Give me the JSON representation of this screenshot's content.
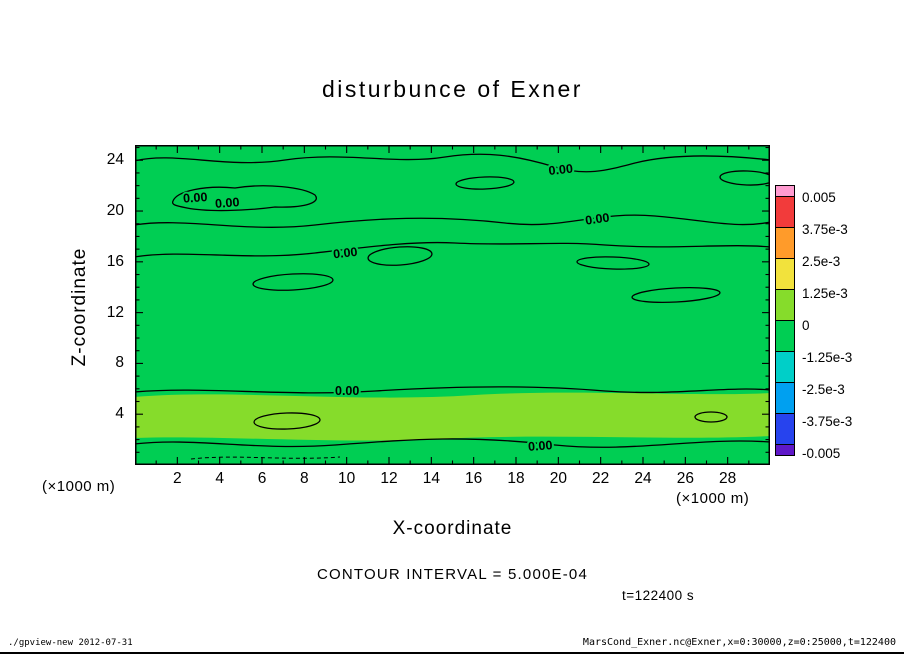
{
  "title": "disturbunce of Exner",
  "contour_label": "0.00",
  "axes": {
    "x": {
      "label": "X-coordinate",
      "unit": "(×1000 m)",
      "ticks": [
        "2",
        "4",
        "6",
        "8",
        "10",
        "12",
        "14",
        "16",
        "18",
        "20",
        "22",
        "24",
        "26",
        "28"
      ]
    },
    "y": {
      "label": "Z-coordinate",
      "unit": "(×1000 m)",
      "ticks": [
        "4",
        "8",
        "12",
        "16",
        "20",
        "24"
      ]
    }
  },
  "colorbar": {
    "labels": [
      "0.005",
      "3.75e-3",
      "2.5e-3",
      "1.25e-3",
      "0",
      "-1.25e-3",
      "-2.5e-3",
      "-3.75e-3",
      "-0.005"
    ],
    "colors": [
      "#FF9BD0",
      "#F23B3B",
      "#FF9B2A",
      "#F2E23C",
      "#86DC2B",
      "#00CE53",
      "#00CFC8",
      "#00A0F0",
      "#2743EE",
      "#5F18C8"
    ]
  },
  "colors": {
    "plot_bg": "#00CE53",
    "band": "#86DC2B",
    "frame": "#000000"
  },
  "annotations": {
    "contour_interval": "CONTOUR INTERVAL = 5.000E-04",
    "time": "t=122400 s"
  },
  "footer": {
    "left": "./gpview-new  2012-07-31",
    "right": "MarsCond_Exner.nc@Exner,x=0:30000,z=0:25000,t=122400"
  },
  "chart_data": {
    "type": "contour",
    "title": "disturbunce of Exner",
    "xlabel": "X-coordinate",
    "ylabel": "Z-coordinate",
    "x_unit": "×1000 m",
    "y_unit": "×1000 m",
    "xlim": [
      0,
      30
    ],
    "ylim": [
      0,
      25
    ],
    "x_ticks": [
      2,
      4,
      6,
      8,
      10,
      12,
      14,
      16,
      18,
      20,
      22,
      24,
      26,
      28
    ],
    "y_ticks": [
      4,
      8,
      12,
      16,
      20,
      24
    ],
    "contour_interval": 0.0005,
    "labeled_contour_level": 0,
    "colorbar_levels": [
      0.005,
      0.00375,
      0.0025,
      0.00125,
      0,
      -0.00125,
      -0.0025,
      -0.00375,
      -0.005
    ],
    "legend_position": "right",
    "grid": false,
    "time_label": "t=122400 s",
    "field_description": "Exner-function disturbance near zero over whole domain: most of the field lies in the 0 to -1.25e-3 bin (green); a horizontal band in the 0 to +1.25e-3 bin (yellow-green) spans the full width near z = 3-5 (x1000 m); undulating 0.00 contour lines run horizontally with several small closed cells; a short dashed negative contour appears near the bottom left"
  }
}
